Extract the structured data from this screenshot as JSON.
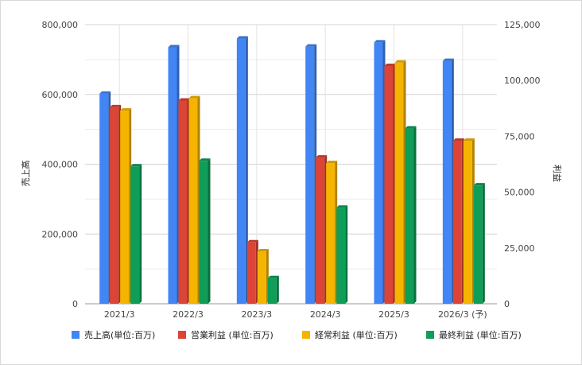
{
  "chart_data": {
    "type": "bar",
    "categories": [
      "2021/3",
      "2022/3",
      "2023/3",
      "2024/3",
      "2025/3",
      "2026/3 (予)"
    ],
    "series": [
      {
        "name": "売上高(単位:百万)",
        "axis": "left",
        "color": "#4285f4",
        "values": [
          602000,
          735000,
          760000,
          737000,
          749000,
          696000
        ]
      },
      {
        "name": "営業利益 (単位:百万)",
        "axis": "right",
        "color": "#db4437",
        "values": [
          88000,
          91000,
          27500,
          65500,
          106500,
          73000
        ]
      },
      {
        "name": "経常利益 (単位:百万)",
        "axis": "right",
        "color": "#f4b400",
        "values": [
          86500,
          92000,
          23500,
          63000,
          108000,
          73000
        ]
      },
      {
        "name": "最終利益 (単位:百万)",
        "axis": "right",
        "color": "#0f9d58",
        "values": [
          61500,
          64000,
          11500,
          43000,
          78500,
          53000
        ]
      }
    ],
    "ylabel_left": "売上高",
    "ylabel_right": "利益",
    "ylim_left": [
      0,
      800000
    ],
    "ylim_right": [
      0,
      125000
    ],
    "yticks_left": [
      "0",
      "200,000",
      "400,000",
      "600,000",
      "800,000"
    ],
    "yticks_right": [
      "0",
      "25,000",
      "50,000",
      "75,000",
      "100,000",
      "125,000"
    ],
    "grid": true,
    "legend_position": "bottom"
  }
}
